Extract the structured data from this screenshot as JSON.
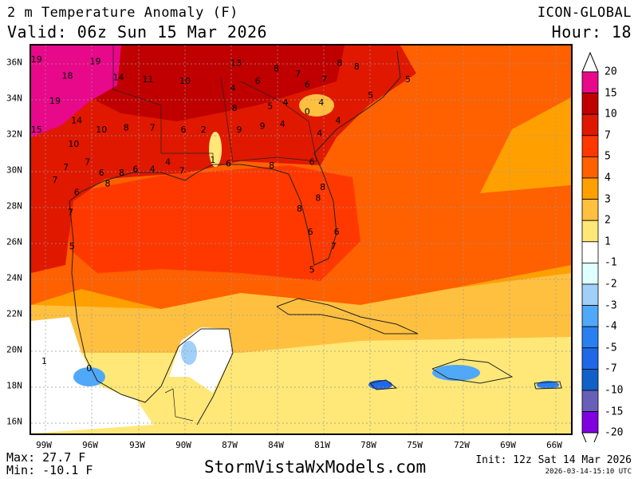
{
  "header": {
    "title": "2 m Temperature Anomaly (F)",
    "valid": "Valid: 06z Sun 15 Mar 2026",
    "model": "ICON-GLOBAL",
    "hour": "Hour: 18"
  },
  "footer": {
    "max": "Max: 27.7 F",
    "min": "Min: -10.1 F",
    "site": "StormVistaWxModels.com",
    "init": "Init: 12z Sat 14 Mar 2026",
    "timestamp": "2026-03-14-15:10 UTC"
  },
  "axes": {
    "lon_labels": [
      "99W",
      "96W",
      "93W",
      "90W",
      "87W",
      "84W",
      "81W",
      "78W",
      "75W",
      "72W",
      "69W",
      "66W"
    ],
    "lat_labels": [
      "36N",
      "34N",
      "32N",
      "30N",
      "28N",
      "26N",
      "24N",
      "22N",
      "20N",
      "18N",
      "16N"
    ]
  },
  "colorbar": {
    "labels": [
      "20",
      "15",
      "10",
      "7",
      "5",
      "4",
      "3",
      "2",
      "1",
      "-1",
      "-2",
      "-3",
      "-4",
      "-5",
      "-7",
      "-10",
      "-15",
      "-20"
    ],
    "colors": [
      "#e8088a",
      "#c00000",
      "#e01800",
      "#ff3800",
      "#ff6000",
      "#ffa000",
      "#ffc040",
      "#ffe878",
      "#ffffff",
      "#e0ffff",
      "#a0d0f8",
      "#50a8f8",
      "#2880f0",
      "#2068e8",
      "#1060c8",
      "#6860b8",
      "#8000e0"
    ]
  },
  "station_values": [
    {
      "v": "19",
      "lon": -99.6,
      "lat": 36.2
    },
    {
      "v": "19",
      "lon": -95.8,
      "lat": 36.1
    },
    {
      "v": "18",
      "lon": -97.6,
      "lat": 35.3
    },
    {
      "v": "14",
      "lon": -94.3,
      "lat": 35.2
    },
    {
      "v": "11",
      "lon": -92.4,
      "lat": 35.1
    },
    {
      "v": "13",
      "lon": -86.7,
      "lat": 36.0
    },
    {
      "v": "8",
      "lon": -84.1,
      "lat": 35.7
    },
    {
      "v": "8",
      "lon": -80.0,
      "lat": 36.0
    },
    {
      "v": "8",
      "lon": -78.9,
      "lat": 35.8
    },
    {
      "v": "5",
      "lon": -75.6,
      "lat": 35.1
    },
    {
      "v": "10",
      "lon": -90.0,
      "lat": 35.0
    },
    {
      "v": "4",
      "lon": -86.9,
      "lat": 34.6
    },
    {
      "v": "6",
      "lon": -85.3,
      "lat": 35.0
    },
    {
      "v": "7",
      "lon": -82.7,
      "lat": 35.4
    },
    {
      "v": "7",
      "lon": -81.0,
      "lat": 35.1
    },
    {
      "v": "6",
      "lon": -82.1,
      "lat": 34.8
    },
    {
      "v": "5",
      "lon": -78.0,
      "lat": 34.2
    },
    {
      "v": "19",
      "lon": -98.4,
      "lat": 33.9
    },
    {
      "v": "8",
      "lon": -86.8,
      "lat": 33.5
    },
    {
      "v": "5",
      "lon": -84.5,
      "lat": 33.6
    },
    {
      "v": "4",
      "lon": -83.5,
      "lat": 33.8
    },
    {
      "v": "0",
      "lon": -82.1,
      "lat": 33.3
    },
    {
      "v": "4",
      "lon": -81.2,
      "lat": 33.8
    },
    {
      "v": "14",
      "lon": -97.0,
      "lat": 32.8
    },
    {
      "v": "15",
      "lon": -99.6,
      "lat": 32.3
    },
    {
      "v": "10",
      "lon": -95.4,
      "lat": 32.3
    },
    {
      "v": "8",
      "lon": -93.8,
      "lat": 32.4
    },
    {
      "v": "7",
      "lon": -92.1,
      "lat": 32.4
    },
    {
      "v": "6",
      "lon": -90.1,
      "lat": 32.3
    },
    {
      "v": "2",
      "lon": -88.8,
      "lat": 32.3
    },
    {
      "v": "9",
      "lon": -86.5,
      "lat": 32.3
    },
    {
      "v": "9",
      "lon": -85.0,
      "lat": 32.5
    },
    {
      "v": "4",
      "lon": -83.7,
      "lat": 32.6
    },
    {
      "v": "4",
      "lon": -80.1,
      "lat": 32.8
    },
    {
      "v": "4",
      "lon": -81.3,
      "lat": 32.1
    },
    {
      "v": "10",
      "lon": -97.2,
      "lat": 31.5
    },
    {
      "v": "7",
      "lon": -96.3,
      "lat": 30.5
    },
    {
      "v": "7",
      "lon": -97.7,
      "lat": 30.2
    },
    {
      "v": "7",
      "lon": -98.4,
      "lat": 29.5
    },
    {
      "v": "6",
      "lon": -95.4,
      "lat": 29.9
    },
    {
      "v": "8",
      "lon": -94.1,
      "lat": 29.9
    },
    {
      "v": "6",
      "lon": -93.2,
      "lat": 30.1
    },
    {
      "v": "4",
      "lon": -92.1,
      "lat": 30.1
    },
    {
      "v": "4",
      "lon": -91.1,
      "lat": 30.5
    },
    {
      "v": "7",
      "lon": -90.2,
      "lat": 30.0
    },
    {
      "v": "1",
      "lon": -88.2,
      "lat": 30.6
    },
    {
      "v": "6",
      "lon": -87.2,
      "lat": 30.4
    },
    {
      "v": "8",
      "lon": -84.4,
      "lat": 30.3
    },
    {
      "v": "6",
      "lon": -81.8,
      "lat": 30.5
    },
    {
      "v": "8",
      "lon": -95.0,
      "lat": 29.3
    },
    {
      "v": "6",
      "lon": -97.0,
      "lat": 28.8
    },
    {
      "v": "8",
      "lon": -81.1,
      "lat": 29.1
    },
    {
      "v": "8",
      "lon": -81.4,
      "lat": 28.5
    },
    {
      "v": "8",
      "lon": -82.6,
      "lat": 27.9
    },
    {
      "v": "7",
      "lon": -97.4,
      "lat": 27.7
    },
    {
      "v": "6",
      "lon": -81.9,
      "lat": 26.6
    },
    {
      "v": "6",
      "lon": -80.2,
      "lat": 26.6
    },
    {
      "v": "7",
      "lon": -80.4,
      "lat": 25.8
    },
    {
      "v": "5",
      "lon": -97.3,
      "lat": 25.8
    },
    {
      "v": "5",
      "lon": -81.8,
      "lat": 24.5
    },
    {
      "v": "1",
      "lon": -99.1,
      "lat": 19.4
    },
    {
      "v": "0",
      "lon": -96.2,
      "lat": 19.0
    }
  ]
}
